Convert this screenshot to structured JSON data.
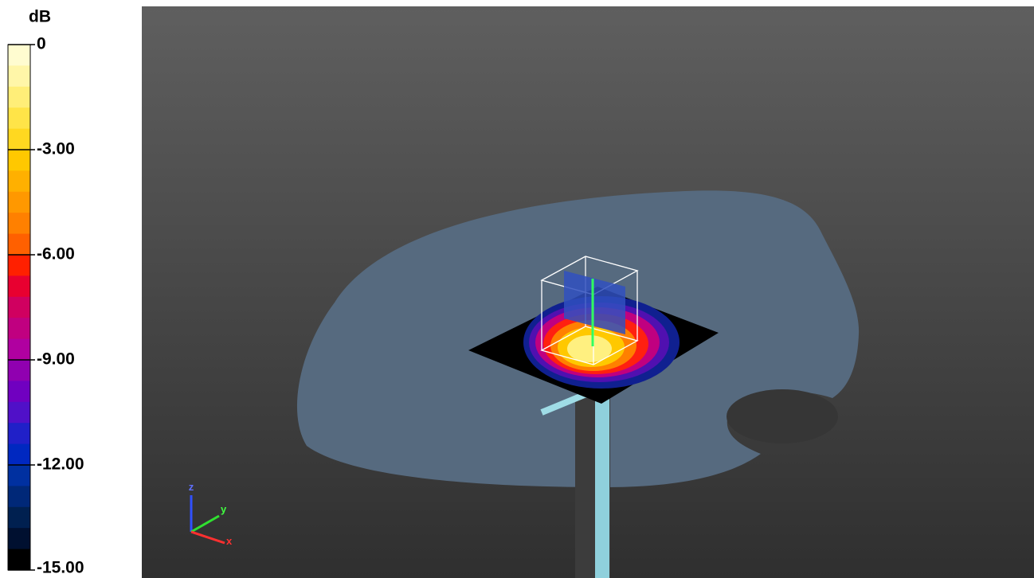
{
  "legend": {
    "unit": "dB",
    "ticks": [
      "0",
      "-3.00",
      "-6.00",
      "-9.00",
      "-12.00",
      "-15.00"
    ]
  },
  "axes": {
    "z": "z",
    "y": "y",
    "x": "x"
  }
}
